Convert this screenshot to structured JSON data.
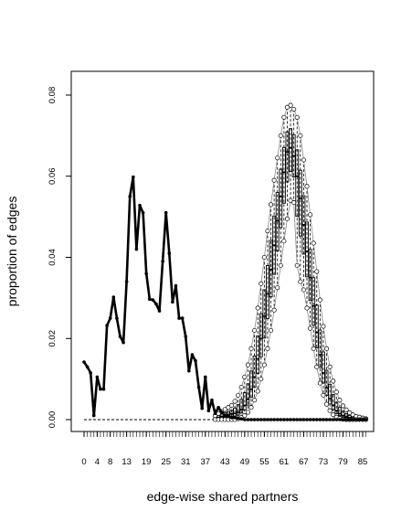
{
  "chart_data": {
    "type": "line",
    "title": "",
    "xlabel": "edge-wise shared partners",
    "ylabel": "proportion of edges",
    "xlim": [
      0,
      87
    ],
    "ylim": [
      0,
      0.082
    ],
    "grid": false,
    "x_tick_labels": [
      "0",
      "4",
      "8",
      "13",
      "19",
      "25",
      "31",
      "37",
      "43",
      "49",
      "55",
      "61",
      "67",
      "73",
      "79",
      "85"
    ],
    "y_tick_labels": [
      "0.00",
      "0.02",
      "0.04",
      "0.06",
      "0.08"
    ],
    "y_tick_values": [
      0,
      0.02,
      0.04,
      0.06,
      0.08
    ],
    "series": [
      {
        "role": "observed",
        "x": [
          0,
          1,
          2,
          3,
          4,
          5,
          6,
          7,
          8,
          9,
          10,
          11,
          12,
          13,
          14,
          15,
          16,
          17,
          18,
          19,
          20,
          21,
          22,
          23,
          24,
          25,
          26,
          27,
          28,
          29,
          30,
          31,
          32,
          33,
          34,
          35,
          36,
          37,
          38,
          39,
          40,
          41,
          42,
          43,
          44,
          45,
          46,
          47,
          48,
          49,
          50,
          51,
          52,
          53,
          54,
          55,
          56,
          57,
          58,
          59,
          60,
          61,
          62,
          63,
          64,
          65,
          66,
          67,
          68,
          69,
          70,
          71,
          72,
          73,
          74,
          75,
          76,
          77,
          78,
          79,
          80,
          81,
          82,
          83,
          84,
          85,
          86
        ],
        "y": [
          0.0142,
          0.013,
          0.0115,
          0.001,
          0.0105,
          0.0075,
          0.0075,
          0.0232,
          0.025,
          0.0302,
          0.025,
          0.0205,
          0.019,
          0.034,
          0.055,
          0.0598,
          0.042,
          0.0528,
          0.051,
          0.036,
          0.0297,
          0.0295,
          0.0285,
          0.0268,
          0.039,
          0.051,
          0.041,
          0.029,
          0.033,
          0.025,
          0.025,
          0.0205,
          0.012,
          0.016,
          0.0145,
          0.008,
          0.0028,
          0.0105,
          0.0022,
          0.0048,
          0.0015,
          0.003,
          0.0018,
          0.001,
          0.0008,
          0.0005,
          0.0005,
          0.0003,
          0.0002,
          0,
          0,
          0,
          0,
          0,
          0,
          0,
          0,
          0,
          0,
          0,
          0,
          0,
          0,
          0,
          0,
          0,
          0,
          0,
          0,
          0,
          0,
          0,
          0,
          0,
          0,
          0,
          0,
          0,
          0,
          0,
          0,
          0,
          0,
          0,
          0,
          0,
          0
        ]
      },
      {
        "role": "simulated-median",
        "x": [
          40,
          41,
          42,
          43,
          44,
          45,
          46,
          47,
          48,
          49,
          50,
          51,
          52,
          53,
          54,
          55,
          56,
          57,
          58,
          59,
          60,
          61,
          62,
          63,
          64,
          65,
          66,
          67,
          68,
          69,
          70,
          71,
          72,
          73,
          74,
          75,
          76,
          77,
          78,
          79,
          80,
          81,
          82,
          83,
          84,
          85,
          86
        ],
        "y": [
          0.0003,
          0.0005,
          0.0008,
          0.001,
          0.0012,
          0.0014,
          0.0015,
          0.0018,
          0.0025,
          0.0035,
          0.005,
          0.0075,
          0.0105,
          0.015,
          0.02,
          0.0255,
          0.031,
          0.037,
          0.043,
          0.049,
          0.055,
          0.061,
          0.066,
          0.067,
          0.065,
          0.06,
          0.0545,
          0.048,
          0.0415,
          0.035,
          0.028,
          0.0215,
          0.016,
          0.0115,
          0.0078,
          0.0052,
          0.0035,
          0.0022,
          0.0015,
          0.001,
          0.0007,
          0.0005,
          0.0003,
          0.0002,
          0.0001,
          0.0001,
          0
        ]
      },
      {
        "role": "simulated-upper-bound",
        "x": [
          40,
          41,
          42,
          43,
          44,
          45,
          46,
          47,
          48,
          49,
          50,
          51,
          52,
          53,
          54,
          55,
          56,
          57,
          58,
          59,
          60,
          61,
          62,
          63,
          64,
          65,
          66,
          67,
          68,
          69,
          70,
          71,
          72,
          73,
          74,
          75,
          76,
          77,
          78,
          79,
          80,
          81,
          82,
          83,
          84,
          85,
          86
        ],
        "y": [
          0.001,
          0.0015,
          0.002,
          0.0025,
          0.003,
          0.0035,
          0.0045,
          0.006,
          0.008,
          0.0105,
          0.0135,
          0.0175,
          0.022,
          0.0275,
          0.0335,
          0.04,
          0.0465,
          0.053,
          0.059,
          0.0645,
          0.07,
          0.0745,
          0.077,
          0.0775,
          0.0765,
          0.0745,
          0.07,
          0.064,
          0.0575,
          0.0505,
          0.0435,
          0.0365,
          0.0295,
          0.023,
          0.0175,
          0.013,
          0.0095,
          0.0068,
          0.0048,
          0.0034,
          0.0024,
          0.0017,
          0.0012,
          0.0008,
          0.0006,
          0.0004,
          0.0002
        ]
      },
      {
        "role": "simulated-lower-bound",
        "x": [
          40,
          41,
          42,
          43,
          44,
          45,
          46,
          47,
          48,
          49,
          50,
          51,
          52,
          53,
          54,
          55,
          56,
          57,
          58,
          59,
          60,
          61,
          62,
          63,
          64,
          65,
          66,
          67,
          68,
          69,
          70,
          71,
          72,
          73,
          74,
          75,
          76,
          77,
          78,
          79,
          80,
          81,
          82,
          83,
          84,
          85,
          86
        ],
        "y": [
          0,
          0,
          0,
          0,
          0,
          0,
          0,
          0.0002,
          0.0005,
          0.001,
          0.0018,
          0.003,
          0.0048,
          0.007,
          0.01,
          0.0135,
          0.0175,
          0.022,
          0.027,
          0.0325,
          0.038,
          0.044,
          0.0495,
          0.054,
          0.0535,
          0.038,
          0.034,
          0.032,
          0.0275,
          0.0225,
          0.0175,
          0.013,
          0.009,
          0.006,
          0.0038,
          0.0022,
          0.0012,
          0.0006,
          0.0003,
          0.0001,
          0,
          0,
          0,
          0,
          0,
          0,
          0
        ]
      }
    ]
  }
}
